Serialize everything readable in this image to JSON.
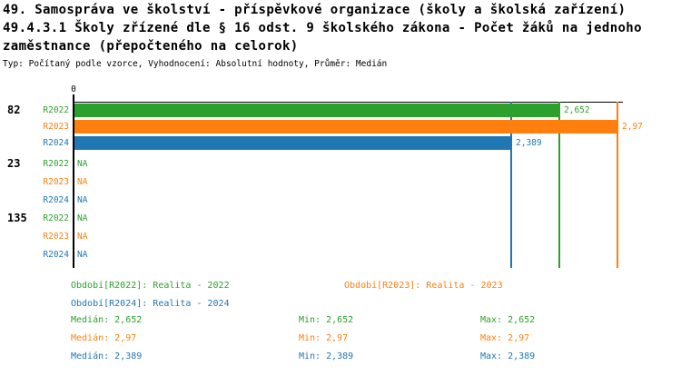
{
  "header": {
    "title_line1": "49. Samospráva ve školství - příspěvkové organizace (školy a školská zařízení)",
    "title_line2": "49.4.3.1 Školy zřízené dle § 16 odst. 9 školského zákona - Počet žáků na jednoho",
    "title_line3": "zaměstnance (přepočteného na celorok)",
    "meta_line": "Typ: Počítaný podle vzorce, Vyhodnocení: Absolutní hodnoty, Průměr: Medián"
  },
  "colors": {
    "R2022": "#2ca02c",
    "R2023": "#ff7f0e",
    "R2024": "#1f77b4",
    "axis": "#000000",
    "text": "#000000",
    "background": "#ffffff"
  },
  "chart_data": {
    "type": "bar",
    "orientation": "horizontal",
    "x_axis": {
      "min": 0,
      "max": 3,
      "tick_labels": [
        "0"
      ],
      "zero_label": "0"
    },
    "series_names": [
      "R2022",
      "R2023",
      "R2024"
    ],
    "groups": [
      {
        "label": "82",
        "rows": [
          {
            "series": "R2022",
            "value": 2.652,
            "value_label": "2,652"
          },
          {
            "series": "R2023",
            "value": 2.97,
            "value_label": "2,97"
          },
          {
            "series": "R2024",
            "value": 2.389,
            "value_label": "2,389"
          }
        ]
      },
      {
        "label": "23",
        "rows": [
          {
            "series": "R2022",
            "value": null,
            "value_label": "NA"
          },
          {
            "series": "R2023",
            "value": null,
            "value_label": "NA"
          },
          {
            "series": "R2024",
            "value": null,
            "value_label": "NA"
          }
        ]
      },
      {
        "label": "135",
        "rows": [
          {
            "series": "R2022",
            "value": null,
            "value_label": "NA"
          },
          {
            "series": "R2023",
            "value": null,
            "value_label": "NA"
          },
          {
            "series": "R2024",
            "value": null,
            "value_label": "NA"
          }
        ]
      }
    ],
    "median_markers": [
      {
        "series": "R2022",
        "value": 2.652
      },
      {
        "series": "R2023",
        "value": 2.97
      },
      {
        "series": "R2024",
        "value": 2.389
      }
    ],
    "legend": [
      {
        "series": "R2022",
        "label": "Období[R2022]: Realita - 2022"
      },
      {
        "series": "R2023",
        "label": "Období[R2023]: Realita - 2023"
      },
      {
        "series": "R2024",
        "label": "Období[R2024]: Realita - 2024"
      }
    ],
    "stats": [
      {
        "series": "R2022",
        "median": "Medián: 2,652",
        "min": "Min: 2,652",
        "max": "Max: 2,652"
      },
      {
        "series": "R2023",
        "median": "Medián: 2,97",
        "min": "Min: 2,97",
        "max": "Max: 2,97"
      },
      {
        "series": "R2024",
        "median": "Medián: 2,389",
        "min": "Min: 2,389",
        "max": "Max: 2,389"
      }
    ]
  }
}
